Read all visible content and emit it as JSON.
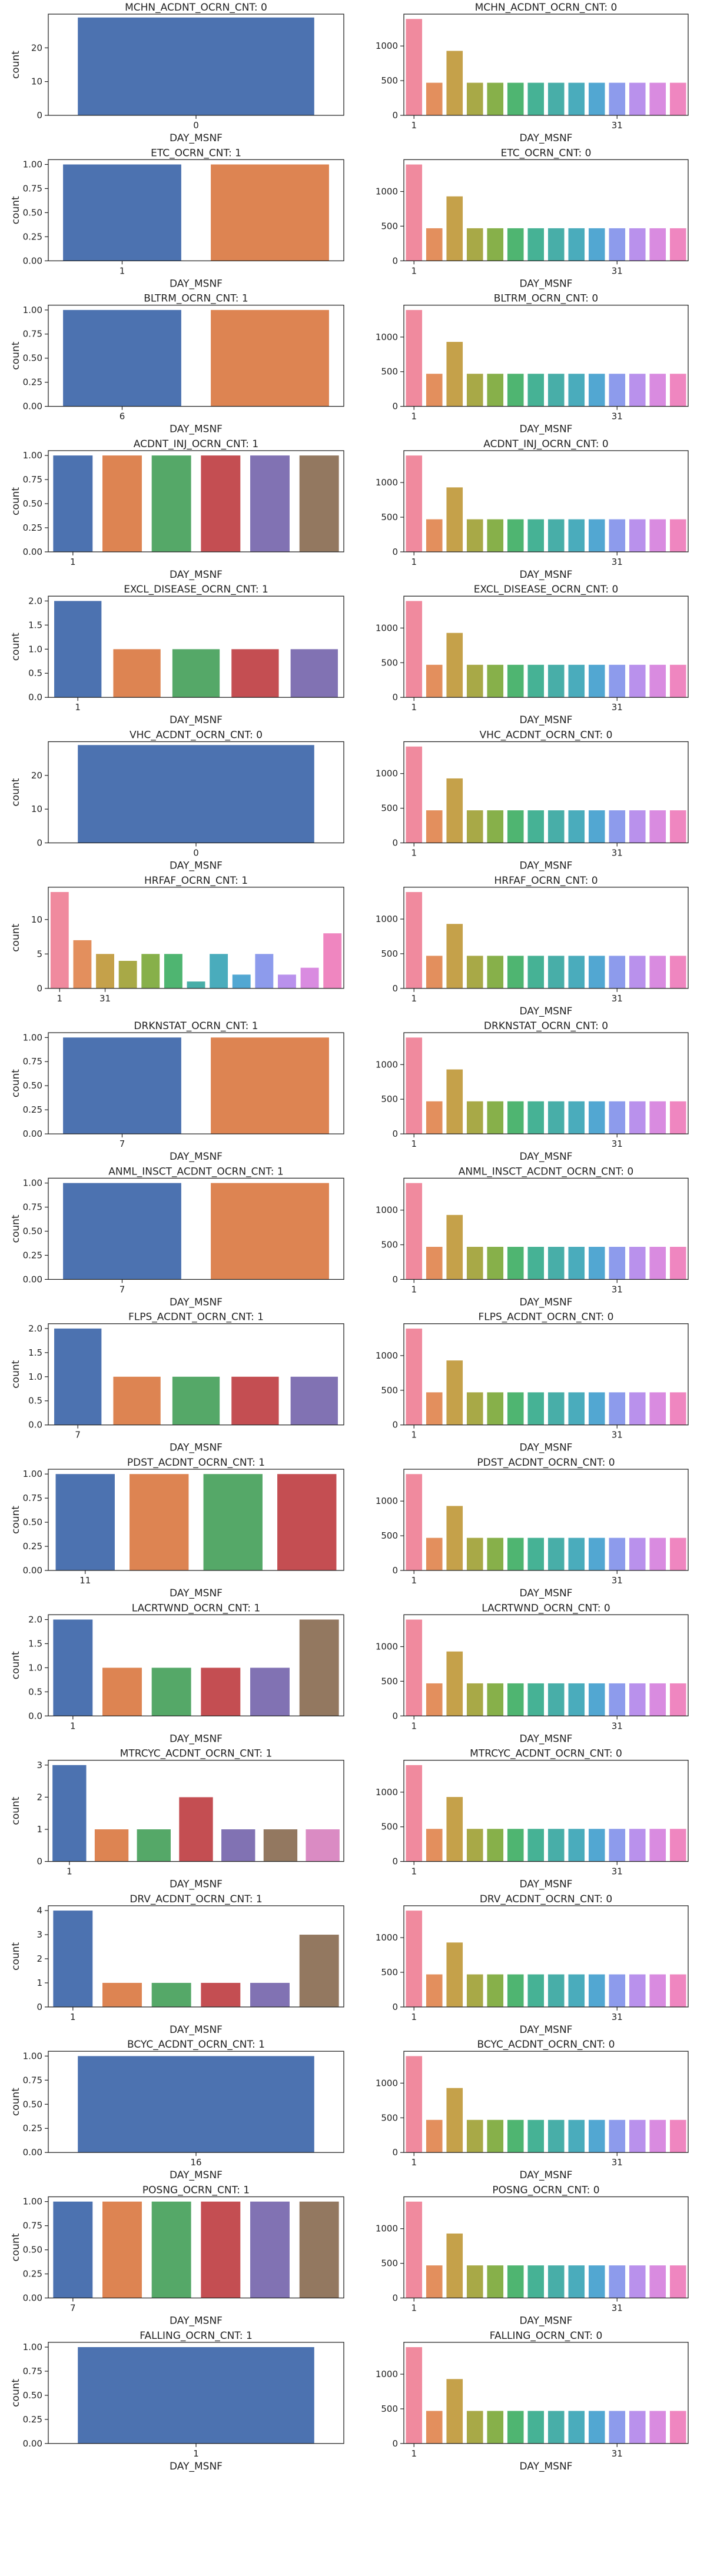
{
  "palettes": {
    "deep": [
      "#4c72b0",
      "#dd8452",
      "#55a868",
      "#c44e52",
      "#8172b3",
      "#937860",
      "#da8bc3",
      "#8c8c8c",
      "#ccb974",
      "#64b5cd"
    ],
    "husl": [
      "#f08a9e",
      "#e38f5d",
      "#c5a14a",
      "#a8a947",
      "#87b04a",
      "#4fb571",
      "#46b295",
      "#48aea8",
      "#4aacbc",
      "#52a7d2",
      "#8d9bec",
      "#b991ec",
      "#d98be0",
      "#ef86c0"
    ]
  },
  "right_counts": [
    1390,
    470,
    930,
    470,
    470,
    470,
    470,
    470,
    470,
    470,
    470,
    470,
    470,
    470
  ],
  "chart_data": [
    {
      "type": "bar",
      "title": "MCHN_ACDNT_OCRN_CNT: 0",
      "xlabel": "DAY_MSNF",
      "ylabel": "count",
      "values": [
        29
      ],
      "xtick_labels": [
        {
          "i": 0,
          "label": "0"
        }
      ],
      "ylim": [
        0,
        30
      ],
      "yticks": [
        0,
        10,
        20
      ],
      "palette": "deep"
    },
    {
      "type": "bar",
      "title": "MCHN_ACDNT_OCRN_CNT: 0",
      "xlabel": "DAY_MSNF",
      "ylabel": "",
      "values_ref": "right_counts",
      "xtick_labels": [
        {
          "i": 0,
          "label": "1"
        },
        {
          "i": 10,
          "label": "31"
        }
      ],
      "ylim": [
        0,
        1460
      ],
      "yticks": [
        0,
        500,
        1000
      ],
      "palette": "husl"
    },
    {
      "type": "bar",
      "title": "ETC_OCRN_CNT: 1",
      "xlabel": "DAY_MSNF",
      "ylabel": "count",
      "values": [
        1,
        1
      ],
      "xtick_labels": [
        {
          "i": 0,
          "label": "1"
        }
      ],
      "ylim": [
        0,
        1.05
      ],
      "yticks": [
        0.0,
        0.25,
        0.5,
        0.75,
        1.0
      ],
      "palette": "deep"
    },
    {
      "type": "bar",
      "title": "ETC_OCRN_CNT: 0",
      "xlabel": "DAY_MSNF",
      "ylabel": "",
      "values_ref": "right_counts",
      "xtick_labels": [
        {
          "i": 0,
          "label": "1"
        },
        {
          "i": 10,
          "label": "31"
        }
      ],
      "ylim": [
        0,
        1460
      ],
      "yticks": [
        0,
        500,
        1000
      ],
      "palette": "husl"
    },
    {
      "type": "bar",
      "title": "BLTRM_OCRN_CNT: 1",
      "xlabel": "DAY_MSNF",
      "ylabel": "count",
      "values": [
        1,
        1
      ],
      "xtick_labels": [
        {
          "i": 0,
          "label": "6"
        }
      ],
      "ylim": [
        0,
        1.05
      ],
      "yticks": [
        0.0,
        0.25,
        0.5,
        0.75,
        1.0
      ],
      "palette": "deep"
    },
    {
      "type": "bar",
      "title": "BLTRM_OCRN_CNT: 0",
      "xlabel": "DAY_MSNF",
      "ylabel": "",
      "values_ref": "right_counts",
      "xtick_labels": [
        {
          "i": 0,
          "label": "1"
        },
        {
          "i": 10,
          "label": "31"
        }
      ],
      "ylim": [
        0,
        1460
      ],
      "yticks": [
        0,
        500,
        1000
      ],
      "palette": "husl"
    },
    {
      "type": "bar",
      "title": "ACDNT_INJ_OCRN_CNT: 1",
      "xlabel": "DAY_MSNF",
      "ylabel": "count",
      "values": [
        1,
        1,
        1,
        1,
        1,
        1
      ],
      "xtick_labels": [
        {
          "i": 0,
          "label": "1"
        }
      ],
      "ylim": [
        0,
        1.05
      ],
      "yticks": [
        0.0,
        0.25,
        0.5,
        0.75,
        1.0
      ],
      "palette": "deep"
    },
    {
      "type": "bar",
      "title": "ACDNT_INJ_OCRN_CNT: 0",
      "xlabel": "DAY_MSNF",
      "ylabel": "",
      "values_ref": "right_counts",
      "xtick_labels": [
        {
          "i": 0,
          "label": "1"
        },
        {
          "i": 10,
          "label": "31"
        }
      ],
      "ylim": [
        0,
        1460
      ],
      "yticks": [
        0,
        500,
        1000
      ],
      "palette": "husl"
    },
    {
      "type": "bar",
      "title": "EXCL_DISEASE_OCRN_CNT: 1",
      "xlabel": "DAY_MSNF",
      "ylabel": "count",
      "values": [
        2,
        1,
        1,
        1,
        1
      ],
      "xtick_labels": [
        {
          "i": 0,
          "label": "1"
        }
      ],
      "ylim": [
        0,
        2.1
      ],
      "yticks": [
        0.0,
        0.5,
        1.0,
        1.5,
        2.0
      ],
      "palette": "deep"
    },
    {
      "type": "bar",
      "title": "EXCL_DISEASE_OCRN_CNT: 0",
      "xlabel": "DAY_MSNF",
      "ylabel": "",
      "values_ref": "right_counts",
      "xtick_labels": [
        {
          "i": 0,
          "label": "1"
        },
        {
          "i": 10,
          "label": "31"
        }
      ],
      "ylim": [
        0,
        1460
      ],
      "yticks": [
        0,
        500,
        1000
      ],
      "palette": "husl"
    },
    {
      "type": "bar",
      "title": "VHC_ACDNT_OCRN_CNT: 0",
      "xlabel": "DAY_MSNF",
      "ylabel": "count",
      "values": [
        29
      ],
      "xtick_labels": [
        {
          "i": 0,
          "label": "0"
        }
      ],
      "ylim": [
        0,
        30
      ],
      "yticks": [
        0,
        10,
        20
      ],
      "palette": "deep"
    },
    {
      "type": "bar",
      "title": "VHC_ACDNT_OCRN_CNT: 0",
      "xlabel": "DAY_MSNF",
      "ylabel": "",
      "values_ref": "right_counts",
      "xtick_labels": [
        {
          "i": 0,
          "label": "1"
        },
        {
          "i": 10,
          "label": "31"
        }
      ],
      "ylim": [
        0,
        1460
      ],
      "yticks": [
        0,
        500,
        1000
      ],
      "palette": "husl"
    },
    {
      "type": "bar",
      "title": "HRFAF_OCRN_CNT: 1",
      "xlabel": "",
      "ylabel": "count",
      "values": [
        14,
        7,
        5,
        4,
        5,
        5,
        1,
        5,
        2,
        5,
        2,
        3,
        8
      ],
      "xtick_labels": [
        {
          "i": 0,
          "label": "1"
        },
        {
          "i": 2,
          "label": "31"
        }
      ],
      "ylim": [
        0,
        14.7
      ],
      "yticks": [
        0,
        5,
        10
      ],
      "palette": "husl13"
    },
    {
      "type": "bar",
      "title": "HRFAF_OCRN_CNT: 0",
      "xlabel": "DAY_MSNF",
      "ylabel": "",
      "values_ref": "right_counts",
      "xtick_labels": [
        {
          "i": 0,
          "label": "1"
        },
        {
          "i": 10,
          "label": "31"
        }
      ],
      "ylim": [
        0,
        1460
      ],
      "yticks": [
        0,
        500,
        1000
      ],
      "palette": "husl"
    },
    {
      "type": "bar",
      "title": "DRKNSTAT_OCRN_CNT: 1",
      "xlabel": "DAY_MSNF",
      "ylabel": "count",
      "values": [
        1,
        1
      ],
      "xtick_labels": [
        {
          "i": 0,
          "label": "7"
        }
      ],
      "ylim": [
        0,
        1.05
      ],
      "yticks": [
        0.0,
        0.25,
        0.5,
        0.75,
        1.0
      ],
      "palette": "deep"
    },
    {
      "type": "bar",
      "title": "DRKNSTAT_OCRN_CNT: 0",
      "xlabel": "DAY_MSNF",
      "ylabel": "",
      "values_ref": "right_counts",
      "xtick_labels": [
        {
          "i": 0,
          "label": "1"
        },
        {
          "i": 10,
          "label": "31"
        }
      ],
      "ylim": [
        0,
        1460
      ],
      "yticks": [
        0,
        500,
        1000
      ],
      "palette": "husl"
    },
    {
      "type": "bar",
      "title": "ANML_INSCT_ACDNT_OCRN_CNT: 1",
      "xlabel": "DAY_MSNF",
      "ylabel": "count",
      "values": [
        1,
        1
      ],
      "xtick_labels": [
        {
          "i": 0,
          "label": "7"
        }
      ],
      "ylim": [
        0,
        1.05
      ],
      "yticks": [
        0.0,
        0.25,
        0.5,
        0.75,
        1.0
      ],
      "palette": "deep"
    },
    {
      "type": "bar",
      "title": "ANML_INSCT_ACDNT_OCRN_CNT: 0",
      "xlabel": "DAY_MSNF",
      "ylabel": "",
      "values_ref": "right_counts",
      "xtick_labels": [
        {
          "i": 0,
          "label": "1"
        },
        {
          "i": 10,
          "label": "31"
        }
      ],
      "ylim": [
        0,
        1460
      ],
      "yticks": [
        0,
        500,
        1000
      ],
      "palette": "husl"
    },
    {
      "type": "bar",
      "title": "FLPS_ACDNT_OCRN_CNT: 1",
      "xlabel": "DAY_MSNF",
      "ylabel": "count",
      "values": [
        2,
        1,
        1,
        1,
        1
      ],
      "xtick_labels": [
        {
          "i": 0,
          "label": "7"
        }
      ],
      "ylim": [
        0,
        2.1
      ],
      "yticks": [
        0.0,
        0.5,
        1.0,
        1.5,
        2.0
      ],
      "palette": "deep"
    },
    {
      "type": "bar",
      "title": "FLPS_ACDNT_OCRN_CNT: 0",
      "xlabel": "DAY_MSNF",
      "ylabel": "",
      "values_ref": "right_counts",
      "xtick_labels": [
        {
          "i": 0,
          "label": "1"
        },
        {
          "i": 10,
          "label": "31"
        }
      ],
      "ylim": [
        0,
        1460
      ],
      "yticks": [
        0,
        500,
        1000
      ],
      "palette": "husl"
    },
    {
      "type": "bar",
      "title": "PDST_ACDNT_OCRN_CNT: 1",
      "xlabel": "DAY_MSNF",
      "ylabel": "count",
      "values": [
        1,
        1,
        1,
        1
      ],
      "xtick_labels": [
        {
          "i": 0,
          "label": "11"
        }
      ],
      "ylim": [
        0,
        1.05
      ],
      "yticks": [
        0.0,
        0.25,
        0.5,
        0.75,
        1.0
      ],
      "palette": "deep"
    },
    {
      "type": "bar",
      "title": "PDST_ACDNT_OCRN_CNT: 0",
      "xlabel": "DAY_MSNF",
      "ylabel": "",
      "values_ref": "right_counts",
      "xtick_labels": [
        {
          "i": 0,
          "label": "1"
        },
        {
          "i": 10,
          "label": "31"
        }
      ],
      "ylim": [
        0,
        1460
      ],
      "yticks": [
        0,
        500,
        1000
      ],
      "palette": "husl"
    },
    {
      "type": "bar",
      "title": "LACRTWND_OCRN_CNT: 1",
      "xlabel": "DAY_MSNF",
      "ylabel": "count",
      "values": [
        2,
        1,
        1,
        1,
        1,
        2
      ],
      "xtick_labels": [
        {
          "i": 0,
          "label": "1"
        }
      ],
      "ylim": [
        0,
        2.1
      ],
      "yticks": [
        0.0,
        0.5,
        1.0,
        1.5,
        2.0
      ],
      "palette": "deep"
    },
    {
      "type": "bar",
      "title": "LACRTWND_OCRN_CNT: 0",
      "xlabel": "DAY_MSNF",
      "ylabel": "",
      "values_ref": "right_counts",
      "xtick_labels": [
        {
          "i": 0,
          "label": "1"
        },
        {
          "i": 10,
          "label": "31"
        }
      ],
      "ylim": [
        0,
        1460
      ],
      "yticks": [
        0,
        500,
        1000
      ],
      "palette": "husl"
    },
    {
      "type": "bar",
      "title": "MTRCYC_ACDNT_OCRN_CNT: 1",
      "xlabel": "DAY_MSNF",
      "ylabel": "count",
      "values": [
        3,
        1,
        1,
        2,
        1,
        1,
        1
      ],
      "xtick_labels": [
        {
          "i": 0,
          "label": "1"
        }
      ],
      "ylim": [
        0,
        3.15
      ],
      "yticks": [
        0,
        1,
        2,
        3
      ],
      "palette": "deep"
    },
    {
      "type": "bar",
      "title": "MTRCYC_ACDNT_OCRN_CNT: 0",
      "xlabel": "DAY_MSNF",
      "ylabel": "",
      "values_ref": "right_counts",
      "xtick_labels": [
        {
          "i": 0,
          "label": "1"
        },
        {
          "i": 10,
          "label": "31"
        }
      ],
      "ylim": [
        0,
        1460
      ],
      "yticks": [
        0,
        500,
        1000
      ],
      "palette": "husl"
    },
    {
      "type": "bar",
      "title": "DRV_ACDNT_OCRN_CNT: 1",
      "xlabel": "DAY_MSNF",
      "ylabel": "count",
      "values": [
        4,
        1,
        1,
        1,
        1,
        3
      ],
      "xtick_labels": [
        {
          "i": 0,
          "label": "1"
        }
      ],
      "ylim": [
        0,
        4.2
      ],
      "yticks": [
        0,
        1,
        2,
        3,
        4
      ],
      "palette": "deep"
    },
    {
      "type": "bar",
      "title": "DRV_ACDNT_OCRN_CNT: 0",
      "xlabel": "DAY_MSNF",
      "ylabel": "",
      "values_ref": "right_counts",
      "xtick_labels": [
        {
          "i": 0,
          "label": "1"
        },
        {
          "i": 10,
          "label": "31"
        }
      ],
      "ylim": [
        0,
        1460
      ],
      "yticks": [
        0,
        500,
        1000
      ],
      "palette": "husl"
    },
    {
      "type": "bar",
      "title": "BCYC_ACDNT_OCRN_CNT: 1",
      "xlabel": "DAY_MSNF",
      "ylabel": "count",
      "values": [
        1
      ],
      "xtick_labels": [
        {
          "i": 0,
          "label": "16"
        }
      ],
      "ylim": [
        0,
        1.05
      ],
      "yticks": [
        0.0,
        0.25,
        0.5,
        0.75,
        1.0
      ],
      "palette": "deep"
    },
    {
      "type": "bar",
      "title": "BCYC_ACDNT_OCRN_CNT: 0",
      "xlabel": "DAY_MSNF",
      "ylabel": "",
      "values_ref": "right_counts",
      "xtick_labels": [
        {
          "i": 0,
          "label": "1"
        },
        {
          "i": 10,
          "label": "31"
        }
      ],
      "ylim": [
        0,
        1460
      ],
      "yticks": [
        0,
        500,
        1000
      ],
      "palette": "husl"
    },
    {
      "type": "bar",
      "title": "POSNG_OCRN_CNT: 1",
      "xlabel": "DAY_MSNF",
      "ylabel": "count",
      "values": [
        1,
        1,
        1,
        1,
        1,
        1
      ],
      "xtick_labels": [
        {
          "i": 0,
          "label": "7"
        }
      ],
      "ylim": [
        0,
        1.05
      ],
      "yticks": [
        0.0,
        0.25,
        0.5,
        0.75,
        1.0
      ],
      "palette": "deep"
    },
    {
      "type": "bar",
      "title": "POSNG_OCRN_CNT: 0",
      "xlabel": "DAY_MSNF",
      "ylabel": "",
      "values_ref": "right_counts",
      "xtick_labels": [
        {
          "i": 0,
          "label": "1"
        },
        {
          "i": 10,
          "label": "31"
        }
      ],
      "ylim": [
        0,
        1460
      ],
      "yticks": [
        0,
        500,
        1000
      ],
      "palette": "husl"
    },
    {
      "type": "bar",
      "title": "FALLING_OCRN_CNT: 1",
      "xlabel": "DAY_MSNF",
      "ylabel": "count",
      "values": [
        1
      ],
      "xtick_labels": [
        {
          "i": 0,
          "label": "1"
        }
      ],
      "ylim": [
        0,
        1.05
      ],
      "yticks": [
        0.0,
        0.25,
        0.5,
        0.75,
        1.0
      ],
      "palette": "deep"
    },
    {
      "type": "bar",
      "title": "FALLING_OCRN_CNT: 0",
      "xlabel": "DAY_MSNF",
      "ylabel": "",
      "values_ref": "right_counts",
      "xtick_labels": [
        {
          "i": 0,
          "label": "1"
        },
        {
          "i": 10,
          "label": "31"
        }
      ],
      "ylim": [
        0,
        1460
      ],
      "yticks": [
        0,
        500,
        1000
      ],
      "palette": "husl"
    }
  ]
}
